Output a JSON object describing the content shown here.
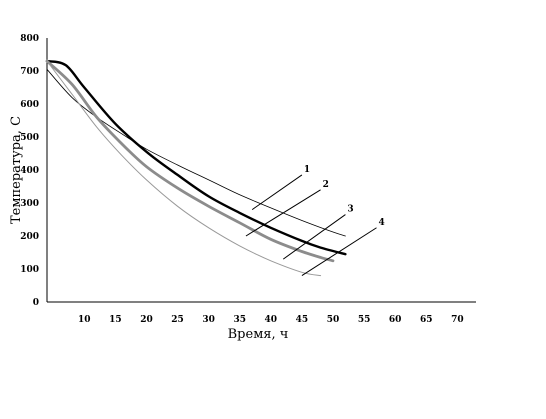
{
  "chart_data": {
    "type": "line",
    "xlabel": "Время, ч",
    "ylabel": "Температура, С",
    "xlim": [
      4,
      73
    ],
    "ylim": [
      0,
      800
    ],
    "x_ticks": [
      10,
      15,
      20,
      25,
      30,
      35,
      40,
      45,
      50,
      55,
      60,
      65,
      70
    ],
    "y_ticks": [
      0,
      100,
      200,
      300,
      400,
      500,
      600,
      700,
      800
    ],
    "grid": false,
    "legend": "none",
    "series": [
      {
        "name": "1",
        "color": "#000000",
        "width": 0.8,
        "points": [
          [
            4,
            705
          ],
          [
            8,
            620
          ],
          [
            12,
            560
          ],
          [
            16,
            510
          ],
          [
            20,
            463
          ],
          [
            25,
            415
          ],
          [
            30,
            370
          ],
          [
            35,
            325
          ],
          [
            40,
            285
          ],
          [
            45,
            247
          ],
          [
            50,
            212
          ],
          [
            52,
            200
          ]
        ]
      },
      {
        "name": "2",
        "color": "#000000",
        "width": 2.4,
        "points": [
          [
            4,
            730
          ],
          [
            7,
            718
          ],
          [
            10,
            650
          ],
          [
            15,
            540
          ],
          [
            20,
            455
          ],
          [
            25,
            385
          ],
          [
            30,
            320
          ],
          [
            35,
            270
          ],
          [
            40,
            225
          ],
          [
            45,
            185
          ],
          [
            48,
            165
          ],
          [
            52,
            145
          ]
        ]
      },
      {
        "name": "3",
        "color": "#8c8c8c",
        "width": 2.8,
        "points": [
          [
            4,
            730
          ],
          [
            8,
            660
          ],
          [
            12,
            560
          ],
          [
            16,
            480
          ],
          [
            20,
            410
          ],
          [
            25,
            345
          ],
          [
            30,
            290
          ],
          [
            35,
            240
          ],
          [
            40,
            190
          ],
          [
            45,
            153
          ],
          [
            48,
            135
          ],
          [
            50,
            125
          ]
        ]
      },
      {
        "name": "4",
        "color": "#999999",
        "width": 1.0,
        "points": [
          [
            4,
            730
          ],
          [
            8,
            630
          ],
          [
            12,
            530
          ],
          [
            16,
            445
          ],
          [
            20,
            370
          ],
          [
            25,
            290
          ],
          [
            30,
            225
          ],
          [
            35,
            170
          ],
          [
            40,
            125
          ],
          [
            45,
            90
          ],
          [
            48,
            80
          ]
        ]
      }
    ],
    "annotations": [
      {
        "text": "1",
        "target_series": 0,
        "leader_from": [
          37,
          280
        ],
        "leader_to": [
          45,
          385
        ]
      },
      {
        "text": "2",
        "target_series": 1,
        "leader_from": [
          36,
          200
        ],
        "leader_to": [
          48,
          340
        ]
      },
      {
        "text": "3",
        "target_series": 2,
        "leader_from": [
          42,
          130
        ],
        "leader_to": [
          52,
          265
        ]
      },
      {
        "text": "4",
        "target_series": 3,
        "leader_from": [
          45,
          80
        ],
        "leader_to": [
          57,
          225
        ]
      }
    ]
  }
}
